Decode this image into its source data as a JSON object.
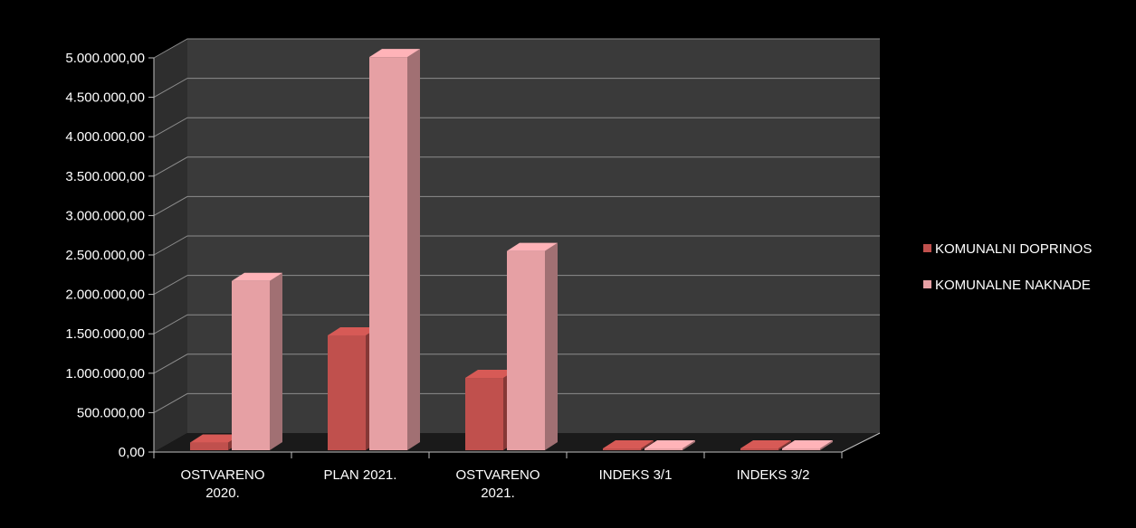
{
  "chart_data": {
    "type": "bar",
    "title": "",
    "xlabel": "",
    "ylabel": "",
    "categories": [
      [
        "OSTVARENO",
        "2020."
      ],
      [
        "PLAN 2021."
      ],
      [
        "OSTVARENO",
        "2021."
      ],
      [
        "INDEKS 3/1"
      ],
      [
        "INDEKS 3/2"
      ]
    ],
    "series": [
      {
        "name": "KOMUNALNI DOPRINOS",
        "color": "#c0504d",
        "values": [
          120000,
          1480000,
          940000,
          0,
          0
        ]
      },
      {
        "name": "KOMUNALNE NAKNADE",
        "color": "#e6a0a4",
        "values": [
          2170000,
          5010000,
          2550000,
          0,
          0
        ]
      }
    ],
    "ylim": [
      0,
      5000000
    ],
    "yticks": [
      "0,00",
      "500.000,00",
      "1.000.000,00",
      "1.500.000,00",
      "2.000.000,00",
      "2.500.000,00",
      "3.000.000,00",
      "3.500.000,00",
      "4.000.000,00",
      "4.500.000,00",
      "5.000.000,00"
    ],
    "grid": true,
    "three_d": true,
    "legend_position": "right",
    "colors": {
      "background": "#000000",
      "plot_wall": "#3a3a3a",
      "floor": "#1a1a1a",
      "grid": "#8c8c8c",
      "text": "#ffffff"
    }
  }
}
